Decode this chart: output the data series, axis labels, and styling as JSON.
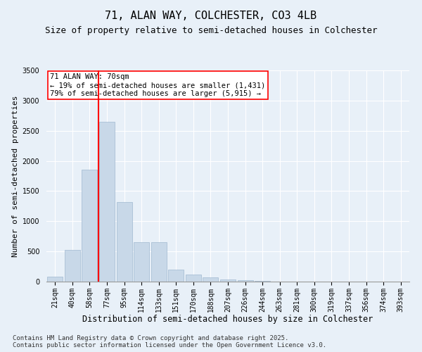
{
  "title1": "71, ALAN WAY, COLCHESTER, CO3 4LB",
  "title2": "Size of property relative to semi-detached houses in Colchester",
  "xlabel": "Distribution of semi-detached houses by size in Colchester",
  "ylabel": "Number of semi-detached properties",
  "categories": [
    "21sqm",
    "40sqm",
    "58sqm",
    "77sqm",
    "95sqm",
    "114sqm",
    "133sqm",
    "151sqm",
    "170sqm",
    "188sqm",
    "207sqm",
    "226sqm",
    "244sqm",
    "263sqm",
    "281sqm",
    "300sqm",
    "319sqm",
    "337sqm",
    "356sqm",
    "374sqm",
    "393sqm"
  ],
  "values": [
    80,
    520,
    1850,
    2650,
    1320,
    650,
    650,
    200,
    120,
    75,
    30,
    20,
    10,
    5,
    3,
    2,
    1,
    1,
    0,
    0,
    0
  ],
  "bar_color": "#c8d8e8",
  "bar_edge_color": "#a0b8d0",
  "vline_color": "red",
  "annotation_text": "71 ALAN WAY: 70sqm\n← 19% of semi-detached houses are smaller (1,431)\n79% of semi-detached houses are larger (5,915) →",
  "ylim": [
    0,
    3500
  ],
  "yticks": [
    0,
    500,
    1000,
    1500,
    2000,
    2500,
    3000,
    3500
  ],
  "background_color": "#e8f0f8",
  "grid_color": "#ffffff",
  "footer1": "Contains HM Land Registry data © Crown copyright and database right 2025.",
  "footer2": "Contains public sector information licensed under the Open Government Licence v3.0.",
  "title1_fontsize": 11,
  "title2_fontsize": 9,
  "xlabel_fontsize": 8.5,
  "ylabel_fontsize": 8,
  "tick_fontsize": 7,
  "annotation_fontsize": 7.5,
  "footer_fontsize": 6.5
}
